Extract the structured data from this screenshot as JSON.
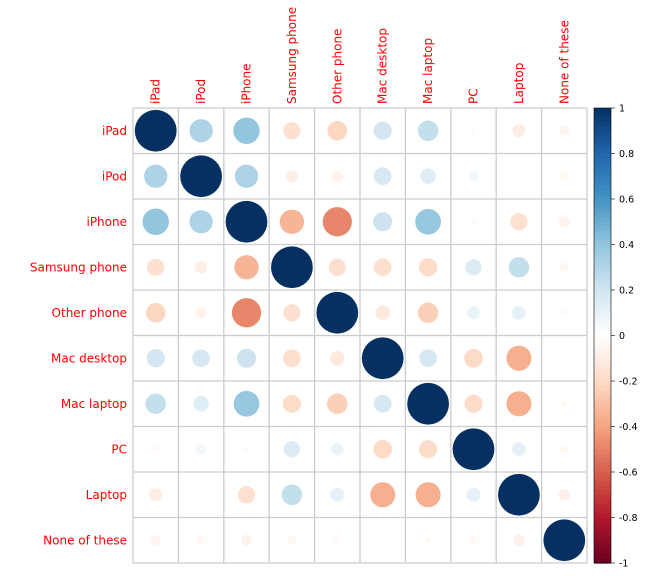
{
  "chart_data": {
    "type": "heatmap",
    "style": "corrplot-circle",
    "labels": [
      "iPad",
      "iPod",
      "iPhone",
      "Samsung phone",
      "Other phone",
      "Mac desktop",
      "Mac laptop",
      "PC",
      "Laptop",
      "None of these"
    ],
    "matrix": [
      [
        1,
        0.31,
        0.4,
        -0.17,
        -0.22,
        0.19,
        0.24,
        -0.03,
        -0.1,
        -0.06
      ],
      [
        0.31,
        1,
        0.31,
        -0.09,
        -0.07,
        0.18,
        0.14,
        0.06,
        -0.01,
        -0.04
      ],
      [
        0.4,
        0.31,
        1,
        -0.34,
        -0.49,
        0.21,
        0.38,
        -0.03,
        -0.17,
        -0.07
      ],
      [
        -0.17,
        -0.09,
        -0.34,
        1,
        -0.17,
        -0.18,
        -0.19,
        0.15,
        0.24,
        -0.05
      ],
      [
        -0.22,
        -0.07,
        -0.49,
        -0.17,
        1,
        -0.12,
        -0.24,
        0.09,
        0.11,
        -0.03
      ],
      [
        0.19,
        0.18,
        0.21,
        -0.18,
        -0.12,
        1,
        0.18,
        -0.2,
        -0.36,
        -0.01
      ],
      [
        0.24,
        0.14,
        0.38,
        -0.19,
        -0.24,
        0.18,
        1,
        -0.19,
        -0.36,
        -0.03
      ],
      [
        -0.03,
        0.06,
        -0.03,
        0.15,
        0.09,
        -0.2,
        -0.19,
        1,
        0.11,
        -0.04
      ],
      [
        -0.1,
        -0.01,
        -0.17,
        0.24,
        0.11,
        -0.36,
        -0.36,
        0.11,
        1,
        -0.08
      ],
      [
        -0.06,
        -0.04,
        -0.07,
        -0.05,
        -0.03,
        -0.01,
        -0.03,
        -0.04,
        -0.08,
        1
      ]
    ],
    "colorbar": {
      "range": [
        -1,
        1
      ],
      "ticks": [
        "1",
        "0.8",
        "0.6",
        "0.4",
        "0.2",
        "0",
        "-0.2",
        "-0.4",
        "-0.6",
        "-0.8",
        "-1"
      ]
    },
    "label_color": "#FF0000",
    "palette": [
      "#67001F",
      "#B2182B",
      "#D6604D",
      "#F4A582",
      "#FDDBC7",
      "#FFFFFF",
      "#D1E5F0",
      "#92C5DE",
      "#4393C3",
      "#2166AC",
      "#053061"
    ],
    "grid": true
  }
}
